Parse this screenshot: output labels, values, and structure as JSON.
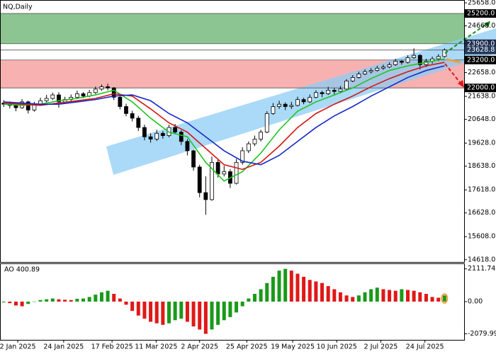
{
  "chart_data": [
    {
      "type": "candlestick",
      "title": "NQ,Daily",
      "xlim": [
        -0.6,
        75.2
      ],
      "ylim": [
        14520,
        25780
      ],
      "yticks": [
        {
          "value": 25658,
          "label": "25658.0"
        },
        {
          "value": 24668,
          "label": "24668.0"
        },
        {
          "value": 22658,
          "label": "22658.0"
        },
        {
          "value": 21638,
          "label": "21638.0"
        },
        {
          "value": 20648,
          "label": "20648.0"
        },
        {
          "value": 19628,
          "label": "19628.0"
        },
        {
          "value": 18638,
          "label": "18638.0"
        },
        {
          "value": 17618,
          "label": "17618.0"
        },
        {
          "value": 16628,
          "label": "16628.0"
        },
        {
          "value": 15608,
          "label": "15608.0"
        },
        {
          "value": 14618,
          "label": "14618.0"
        }
      ],
      "zones": [
        {
          "from": 23900,
          "to": 25200,
          "color": "#7fbf86"
        },
        {
          "from": 22000,
          "to": 23200,
          "color": "#f7a9a9"
        }
      ],
      "levels": [
        {
          "value": 25200,
          "label": "25200.0",
          "color": "#000000"
        },
        {
          "value": 23900,
          "label": "23900.0",
          "color": "#1b2a4a"
        },
        {
          "value": 23628.8,
          "label": "23628.8",
          "color": "#23395d"
        },
        {
          "value": 23200,
          "label": "23200.0",
          "color": "#000000"
        },
        {
          "value": 22000,
          "label": "22000.0",
          "color": "#000000"
        }
      ],
      "open": [
        21350,
        21300,
        21250,
        21150,
        21400,
        21050,
        21300,
        21450,
        21550,
        21700,
        21400,
        21500,
        21600,
        21750,
        21650,
        21800,
        21950,
        22050,
        22000,
        21600,
        21200,
        20900,
        20700,
        20300,
        19900,
        19800,
        20050,
        19950,
        20300,
        20100,
        19700,
        19300,
        18600,
        17500,
        17200,
        18800,
        18300,
        18400,
        17900,
        18800,
        19300,
        19600,
        19800,
        20100,
        20900,
        21200,
        21300,
        21200,
        21250,
        21500,
        21400,
        21600,
        21800,
        21750,
        21900,
        21850,
        21950,
        22300,
        22450,
        22600,
        22700,
        22750,
        22850,
        22900,
        23000,
        23150,
        23100,
        23300,
        23400,
        23000,
        23150,
        23250,
        23350
      ],
      "high": [
        21480,
        21420,
        21350,
        21520,
        21450,
        21400,
        21580,
        21700,
        21800,
        21820,
        21620,
        21720,
        21880,
        21820,
        21920,
        22060,
        22150,
        22180,
        22040,
        21700,
        21320,
        21020,
        20800,
        20420,
        20050,
        20200,
        20150,
        20420,
        20450,
        20180,
        19800,
        19350,
        18700,
        18200,
        19050,
        18900,
        18650,
        18500,
        18950,
        19450,
        19700,
        19950,
        20200,
        21000,
        21350,
        21450,
        21380,
        21400,
        21620,
        21580,
        21720,
        21900,
        21880,
        22050,
        22000,
        22080,
        22380,
        22550,
        22700,
        22800,
        22850,
        22950,
        23000,
        23100,
        23250,
        23200,
        23400,
        23700,
        23450,
        23250,
        23350,
        23450,
        23700
      ],
      "low": [
        21180,
        21120,
        21000,
        21100,
        20900,
        20980,
        21250,
        21380,
        21480,
        21150,
        21320,
        21420,
        21540,
        21560,
        21600,
        21740,
        21880,
        21900,
        21480,
        21080,
        20780,
        20560,
        20150,
        19750,
        19650,
        19720,
        19820,
        19880,
        20000,
        19550,
        19100,
        18450,
        17300,
        16550,
        17150,
        18150,
        18200,
        17700,
        17850,
        18700,
        19200,
        19500,
        19700,
        20050,
        20850,
        21100,
        21050,
        21100,
        21200,
        21300,
        21350,
        21550,
        21600,
        21700,
        21700,
        21800,
        21900,
        22250,
        22400,
        22550,
        22620,
        22700,
        22780,
        22850,
        22950,
        23000,
        23050,
        23250,
        22800,
        22900,
        23050,
        23150,
        23300
      ],
      "close": [
        21300,
        21250,
        21150,
        21400,
        21050,
        21300,
        21450,
        21550,
        21700,
        21400,
        21500,
        21600,
        21750,
        21650,
        21800,
        21950,
        22050,
        22000,
        21600,
        21200,
        20900,
        20700,
        20300,
        19900,
        19800,
        20050,
        19950,
        20300,
        20100,
        19700,
        19300,
        18600,
        17500,
        17200,
        18800,
        18300,
        18400,
        17900,
        18800,
        19300,
        19600,
        19800,
        20100,
        20900,
        21200,
        21300,
        21200,
        21250,
        21500,
        21400,
        21600,
        21800,
        21750,
        21900,
        21850,
        21950,
        22300,
        22450,
        22600,
        22700,
        22750,
        22850,
        22900,
        23000,
        23150,
        23100,
        23300,
        23400,
        23000,
        23150,
        23250,
        23350,
        23628.8
      ],
      "line_x": [
        0,
        3,
        6,
        9,
        12,
        15,
        18,
        21,
        24,
        27,
        30,
        33,
        36,
        39,
        42,
        45,
        48,
        51,
        54,
        57,
        60,
        63,
        66,
        69,
        72
      ],
      "lines": [
        {
          "color": "#1fc41f",
          "values": [
            21300,
            21250,
            21300,
            21450,
            21550,
            21700,
            21900,
            21400,
            20700,
            20100,
            19900,
            18800,
            18000,
            18400,
            19200,
            20200,
            21000,
            21400,
            21700,
            22000,
            22400,
            22750,
            22950,
            23100,
            23250
          ]
        },
        {
          "color": "#d41414",
          "values": [
            21350,
            21300,
            21250,
            21350,
            21450,
            21550,
            21750,
            21650,
            21100,
            20500,
            20100,
            19400,
            18700,
            18500,
            18800,
            19500,
            20300,
            20900,
            21300,
            21650,
            22050,
            22400,
            22700,
            22950,
            23100
          ]
        },
        {
          "color": "#1428c8",
          "values": [
            21400,
            21350,
            21300,
            21300,
            21400,
            21500,
            21650,
            21700,
            21450,
            20900,
            20500,
            19900,
            19300,
            18850,
            18700,
            19100,
            19700,
            20300,
            20800,
            21200,
            21650,
            22050,
            22450,
            22750,
            22950
          ]
        }
      ]
    },
    {
      "type": "bar",
      "title": "AO 400.89",
      "xlim": [
        -0.6,
        75.2
      ],
      "ylim": [
        -2465,
        2465
      ],
      "yticks": [
        {
          "value": 2111.74,
          "label": "2111.74"
        },
        {
          "value": 0,
          "label": "0.00"
        },
        {
          "value": -2079.99,
          "label": "-2079.99"
        }
      ],
      "xticks": [
        {
          "value": 2.3,
          "label": "2 Jan 2025"
        },
        {
          "value": 9.8,
          "label": "24 Jan 2025"
        },
        {
          "value": 17.7,
          "label": "17 Feb 2025"
        },
        {
          "value": 24.9,
          "label": "11 Mar 2025"
        },
        {
          "value": 32.0,
          "label": "2 Apr 2025"
        },
        {
          "value": 39.7,
          "label": "25 Apr 2025"
        },
        {
          "value": 47.2,
          "label": "19 May 2025"
        },
        {
          "value": 54.4,
          "label": "10 Jun 2025"
        },
        {
          "value": 61.6,
          "label": "2 Jul 2025"
        },
        {
          "value": 68.8,
          "label": "24 Jul 2025"
        }
      ],
      "up_color": "#1a9a1a",
      "down_color": "#e01818",
      "values": [
        -50,
        -100,
        -250,
        -300,
        -150,
        0,
        100,
        150,
        200,
        150,
        120,
        100,
        180,
        200,
        300,
        450,
        600,
        700,
        500,
        200,
        -200,
        -600,
        -900,
        -1100,
        -1300,
        -1400,
        -1500,
        -1400,
        -1200,
        -1100,
        -1300,
        -1600,
        -1800,
        -2079.99,
        -1800,
        -1500,
        -1200,
        -1000,
        -700,
        -300,
        200,
        500,
        800,
        1200,
        1600,
        2000,
        2111.74,
        2000,
        1800,
        1600,
        1400,
        1300,
        1200,
        1000,
        800,
        600,
        400,
        300,
        400,
        600,
        800,
        900,
        800,
        750,
        700,
        800,
        750,
        700,
        600,
        500,
        300,
        250,
        400.89
      ]
    }
  ]
}
